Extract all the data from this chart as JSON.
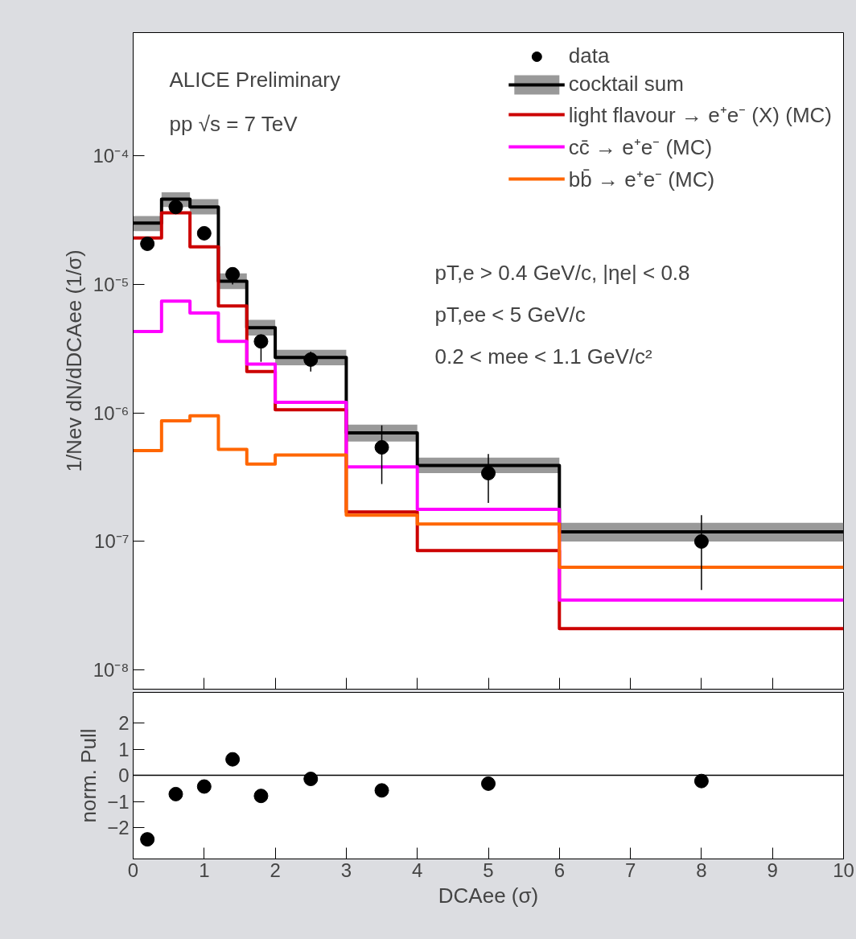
{
  "chart_data": [
    {
      "type": "step",
      "ylabel": "1/Nev dN/dDCAee (1/σ)",
      "log": "y",
      "xlim": [
        0,
        10
      ],
      "ylim": [
        7.1e-09,
        0.00091
      ],
      "yticks": [
        {
          "value": 1e-08,
          "label": "10⁻⁸"
        },
        {
          "value": 1e-07,
          "label": "10⁻⁷"
        },
        {
          "value": 1e-06,
          "label": "10⁻⁶"
        },
        {
          "value": 1e-05,
          "label": "10⁻⁵"
        },
        {
          "value": 0.0001,
          "label": "10⁻⁴"
        }
      ],
      "xticks": [
        0,
        1,
        2,
        3,
        4,
        5,
        6,
        7,
        8,
        9,
        10
      ],
      "tick_labels": "y",
      "grid": false,
      "legend": "top right",
      "annotations": [
        "ALICE Preliminary",
        "pp √s = 7 TeV",
        "pT,e > 0.4 GeV/c, |ηe| < 0.8",
        "pT,ee < 5 GeV/c",
        "0.2 < mee < 1.1 GeV/c²"
      ],
      "series": [
        {
          "name": "data",
          "type": "scatter",
          "marker": "circle",
          "color": "#000000",
          "x": [
            0.2,
            0.6,
            1.0,
            1.4,
            1.8,
            2.5,
            3.5,
            5,
            8
          ],
          "values": [
            2.07e-05,
            4e-05,
            2.5e-05,
            1.2e-05,
            3.6e-06,
            2.6e-06,
            5.4e-07,
            3.4e-07,
            1e-07
          ],
          "errors": [
            null,
            null,
            null,
            [
              1e-05,
              1.35e-05
            ],
            [
              2.5e-06,
              3.6e-06
            ],
            [
              2.1e-06,
              3e-06
            ],
            [
              2.8e-07,
              8e-07
            ],
            [
              2e-07,
              4.8e-07
            ],
            [
              4.2e-08,
              1.6e-07
            ]
          ]
        },
        {
          "name": "cocktail sum",
          "type": "step",
          "color": "#000000",
          "x": [
            0,
            0.4,
            0.8,
            1.2,
            1.6,
            2,
            3,
            4,
            6,
            10
          ],
          "values": [
            3e-05,
            4.6e-05,
            4e-05,
            1.06e-05,
            4.6e-06,
            2.7e-06,
            7e-07,
            3.9e-07,
            1.19e-07,
            1.19e-07
          ],
          "lower": [
            2.6e-05,
            4e-05,
            3.5e-05,
            9.2e-06,
            4e-06,
            2.35e-06,
            6e-07,
            3.4e-07,
            1e-07,
            1e-07
          ],
          "upper": [
            3.4e-05,
            5.2e-05,
            4.6e-05,
            1.22e-05,
            5.3e-06,
            3.1e-06,
            8.1e-07,
            4.5e-07,
            1.4e-07,
            1.4e-07
          ]
        },
        {
          "name": "light flavour → e⁺e⁻ (X) (MC)",
          "type": "step",
          "color": "#cc0000",
          "x": [
            0,
            0.4,
            0.8,
            1.2,
            1.6,
            2,
            3,
            4,
            6,
            10
          ],
          "values": [
            2.3e-05,
            3.6e-05,
            1.96e-05,
            6.8e-06,
            2.1e-06,
            1.06e-06,
            1.7e-07,
            8.5e-08,
            2.1e-08,
            2.1e-08
          ]
        },
        {
          "name": "cc̄ → e⁺e⁻ (MC)",
          "type": "step",
          "color": "#ff00ff",
          "x": [
            0,
            0.4,
            0.8,
            1.2,
            1.6,
            2,
            3,
            4,
            6,
            10
          ],
          "values": [
            4.3e-06,
            7.4e-06,
            6e-06,
            3.6e-06,
            2.4e-06,
            1.21e-06,
            3.8e-07,
            1.78e-07,
            3.5e-08,
            3.5e-08
          ]
        },
        {
          "name": "bb̄ → e⁺e⁻ (MC)",
          "type": "step",
          "color": "#ff6600",
          "x": [
            0,
            0.4,
            0.8,
            1.2,
            1.6,
            2,
            3,
            4,
            6,
            10
          ],
          "values": [
            5.1e-07,
            8.7e-07,
            9.5e-07,
            5.2e-07,
            4e-07,
            4.7e-07,
            1.6e-07,
            1.37e-07,
            6.3e-08,
            6.3e-08
          ]
        }
      ]
    },
    {
      "type": "scatter",
      "marker": "circle",
      "ylabel": "norm. Pull",
      "xlabel": "DCAee (σ)",
      "xlim": [
        0,
        10
      ],
      "ylim": [
        -3.2,
        3.17
      ],
      "xticks": [
        0,
        1,
        2,
        3,
        4,
        5,
        6,
        7,
        8,
        9,
        10
      ],
      "yticks": [
        {
          "value": -2,
          "label": "−2"
        },
        {
          "value": -1,
          "label": "−1"
        },
        0,
        1,
        2
      ],
      "grid": false,
      "ref_lines": [
        {
          "axis": "y",
          "value": 0,
          "color": "#000000"
        }
      ],
      "x": [
        0.2,
        0.6,
        1.0,
        1.4,
        1.8,
        2.5,
        3.5,
        5,
        8
      ],
      "series": [
        {
          "color": "#000000",
          "values": [
            -2.45,
            -0.72,
            -0.43,
            0.61,
            -0.79,
            -0.14,
            -0.58,
            -0.32,
            -0.22
          ]
        }
      ]
    }
  ]
}
